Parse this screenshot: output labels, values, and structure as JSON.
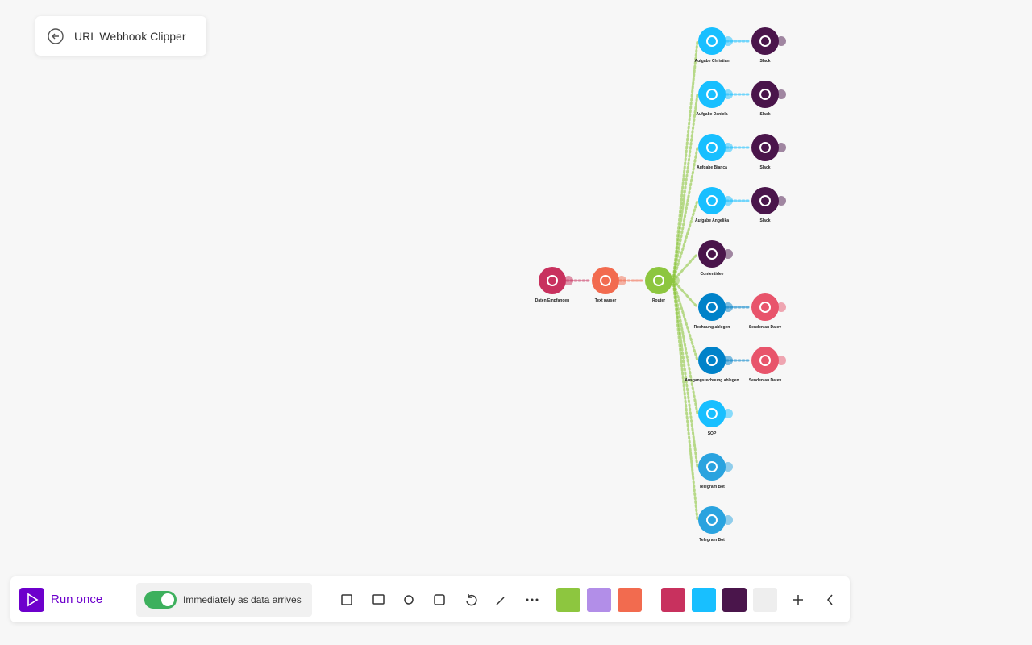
{
  "header": {
    "title": "URL Webhook Clipper"
  },
  "nodes": [
    {
      "label": "Daten Empfangen"
    },
    {
      "label": "Text parser"
    },
    {
      "label": "Router"
    },
    {
      "label": "Aufgabe Christian"
    },
    {
      "label": "Slack"
    },
    {
      "label": "Aufgabe Daniela"
    },
    {
      "label": "Slack"
    },
    {
      "label": "Aufgabe Bianca"
    },
    {
      "label": "Slack"
    },
    {
      "label": "Aufgabe Angelika"
    },
    {
      "label": "Slack"
    },
    {
      "label": "Contentidee"
    },
    {
      "label": "Rechnung ablegen"
    },
    {
      "label": "Senden an Datev"
    },
    {
      "label": "Ausgangsrechnung ablegen"
    },
    {
      "label": "Senden an Datev"
    },
    {
      "label": "SOP"
    },
    {
      "label": "Telegram Bot"
    },
    {
      "label": "Telegram Bot"
    }
  ],
  "toolbar": {
    "run": "Run once",
    "schedule": "Immediately as data arrives"
  }
}
